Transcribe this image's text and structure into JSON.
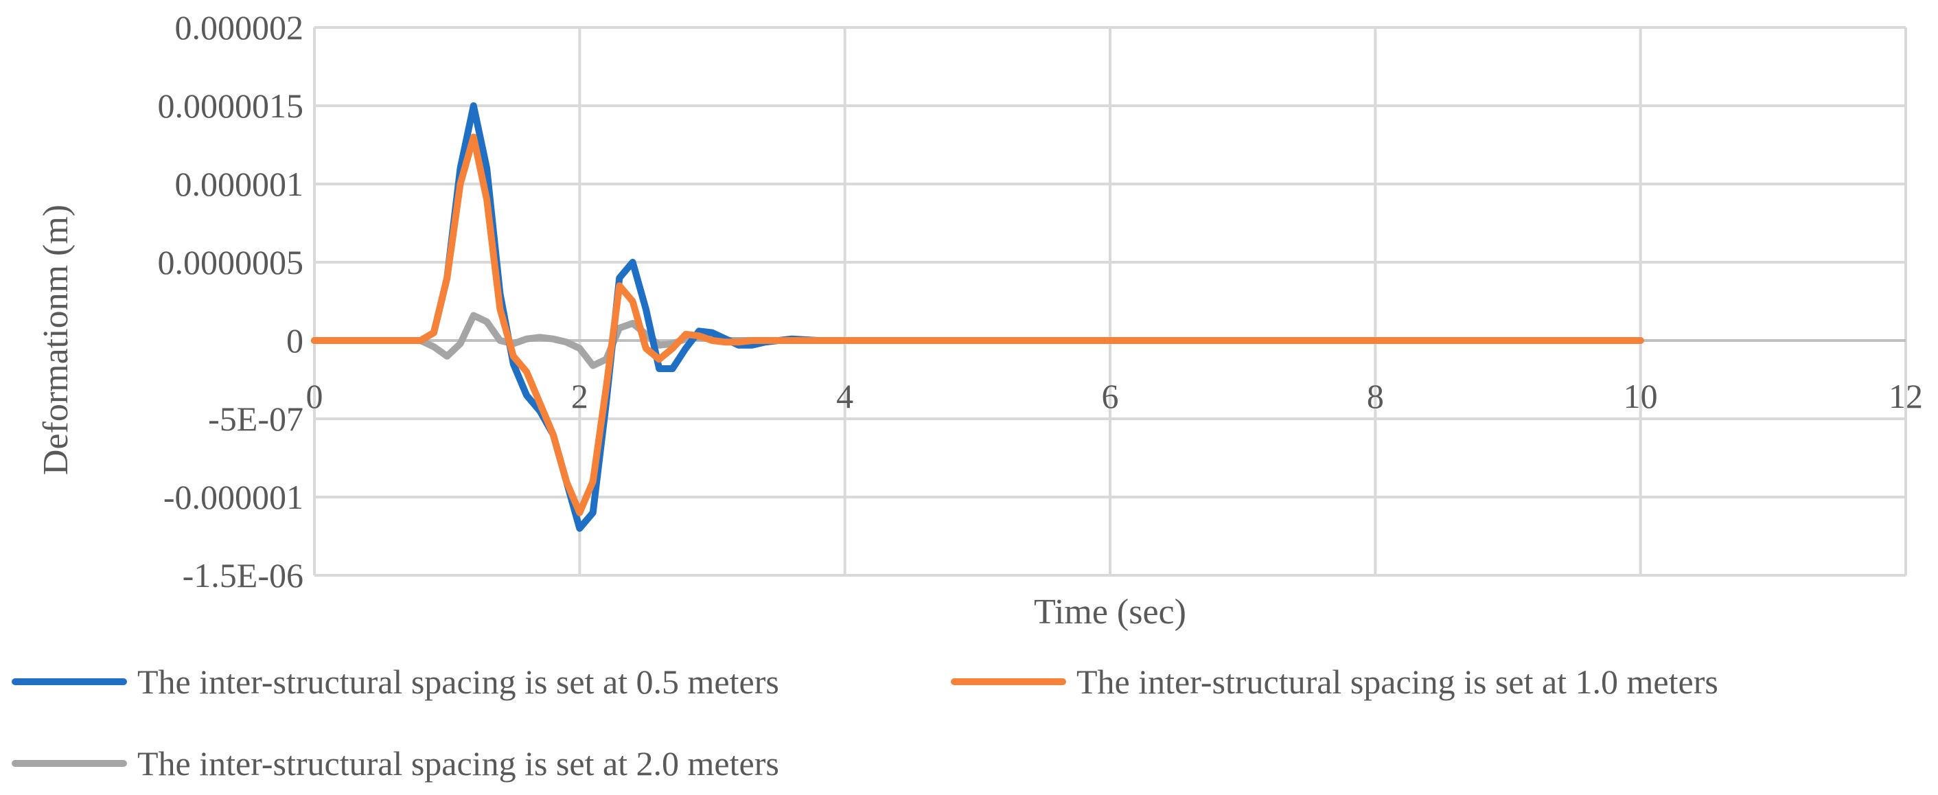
{
  "chart_data": {
    "type": "line",
    "title": "",
    "xlabel": "Time (sec)",
    "ylabel": "Deformationm (m)",
    "xlim": [
      0,
      12
    ],
    "ylim": [
      -1.5e-06,
      2e-06
    ],
    "x_tick_labels": [
      "0",
      "2",
      "4",
      "6",
      "8",
      "10",
      "12"
    ],
    "x_tick_values": [
      0,
      2,
      4,
      6,
      8,
      10,
      12
    ],
    "y_tick_labels": [
      "0.000002",
      "0.0000015",
      "0.000001",
      "0.0000005",
      "0",
      "-5E-07",
      "-0.000001",
      "-1.5E-06"
    ],
    "y_tick_values": [
      2e-06,
      1.5e-06,
      1e-06,
      5e-07,
      0,
      -5e-07,
      -1e-06,
      -1.5e-06
    ],
    "grid": true,
    "legend_position": "bottom",
    "series": [
      {
        "name": "The inter-structural spacing is set at 0.5 meters",
        "color": "#1F6FC5",
        "x": [
          0,
          0.8,
          0.9,
          1.0,
          1.1,
          1.2,
          1.3,
          1.4,
          1.5,
          1.6,
          1.7,
          1.8,
          1.9,
          2.0,
          2.1,
          2.2,
          2.3,
          2.4,
          2.5,
          2.6,
          2.7,
          2.8,
          2.9,
          3.0,
          3.1,
          3.2,
          3.3,
          3.4,
          3.6,
          3.8,
          4.0,
          4.2,
          10
        ],
        "y": [
          0,
          0,
          5e-08,
          4e-07,
          1.1e-06,
          1.5e-06,
          1.1e-06,
          3e-07,
          -1.5e-07,
          -3.5e-07,
          -4.5e-07,
          -6e-07,
          -9e-07,
          -1.2e-06,
          -1.1e-06,
          -4e-07,
          4e-07,
          5e-07,
          2e-07,
          -1.8e-07,
          -1.8e-07,
          -5e-08,
          6e-08,
          5e-08,
          1e-08,
          -3e-08,
          -3e-08,
          -1e-08,
          1e-08,
          0,
          0,
          0,
          0
        ]
      },
      {
        "name": "The inter-structural spacing is set at 1.0 meters",
        "color": "#F6823A",
        "x": [
          0,
          0.8,
          0.9,
          1.0,
          1.1,
          1.2,
          1.3,
          1.4,
          1.5,
          1.6,
          1.7,
          1.8,
          1.9,
          2.0,
          2.1,
          2.2,
          2.3,
          2.4,
          2.5,
          2.6,
          2.7,
          2.8,
          2.9,
          3.0,
          3.1,
          3.2,
          3.3,
          3.4,
          3.6,
          10
        ],
        "y": [
          0,
          0,
          5e-08,
          4e-07,
          1e-06,
          1.3e-06,
          9e-07,
          2e-07,
          -1e-07,
          -2e-07,
          -4e-07,
          -6e-07,
          -9e-07,
          -1.1e-06,
          -9e-07,
          -3e-07,
          3.5e-07,
          2.5e-07,
          -5e-08,
          -1.2e-07,
          -5e-08,
          4e-08,
          3e-08,
          0,
          -1e-08,
          -1e-08,
          0,
          0,
          0,
          0
        ]
      },
      {
        "name": "The inter-structural spacing is set at 2.0 meters",
        "color": "#A5A5A5",
        "x": [
          0,
          0.8,
          0.9,
          1.0,
          1.1,
          1.2,
          1.3,
          1.4,
          1.5,
          1.6,
          1.7,
          1.8,
          1.9,
          2.0,
          2.1,
          2.2,
          2.3,
          2.4,
          2.5,
          2.6,
          2.7,
          2.8,
          2.9,
          3.0,
          3.1,
          3.2,
          10
        ],
        "y": [
          0,
          0,
          -4e-08,
          -1e-07,
          -2e-08,
          1.6e-07,
          1.2e-07,
          0,
          -2e-08,
          1e-08,
          2e-08,
          1e-08,
          -1e-08,
          -5e-08,
          -1.6e-07,
          -1.2e-07,
          8e-08,
          1.1e-07,
          4e-08,
          -3e-08,
          -2e-08,
          1e-08,
          2e-08,
          1e-08,
          0,
          0,
          0
        ]
      }
    ]
  }
}
